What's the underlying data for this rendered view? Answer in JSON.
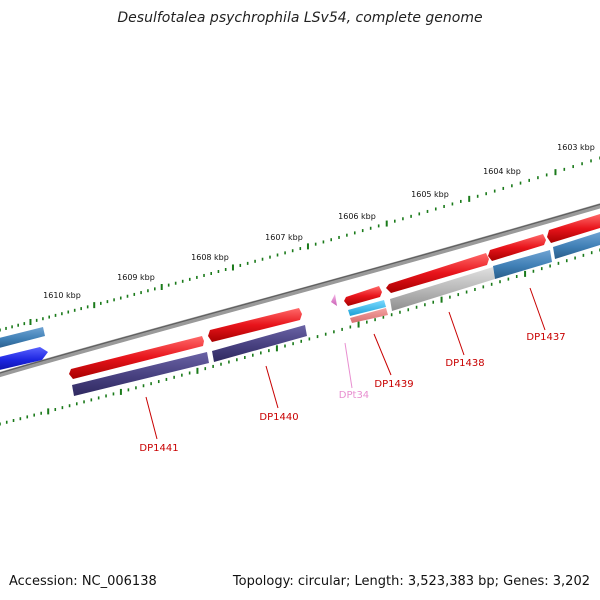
{
  "title": "Desulfotalea psychrophila LSv54, complete genome",
  "footer": {
    "accession": "Accession: NC_006138",
    "summary": "Topology: circular; Length: 3,523,383 bp; Genes: 3,202"
  },
  "colors": {
    "forward_cds": "#e8141b",
    "reverse_cds_blue": "#3f7fb5",
    "reverse_cds_purple": "#47407f",
    "bright_blue": "#1b24e0",
    "trna": "#e37fcf",
    "cyan_feature": "#23b4e5",
    "grey_feature": "#b5b5b5",
    "tick": "#1a7a1a",
    "label_red": "#c80000",
    "label_pink": "#e88fd0",
    "backbone": "#7a7a7a"
  },
  "scale": {
    "ticks": [
      {
        "label": "1603 kbp"
      },
      {
        "label": "1604 kbp"
      },
      {
        "label": "1605 kbp"
      },
      {
        "label": "1606 kbp"
      },
      {
        "label": "1607 kbp"
      },
      {
        "label": "1608 kbp"
      },
      {
        "label": "1609 kbp"
      },
      {
        "label": "1610 kbp"
      }
    ]
  },
  "genes": [
    {
      "label": "DP1437",
      "kind": "cds"
    },
    {
      "label": "DP1438",
      "kind": "cds"
    },
    {
      "label": "DP1439",
      "kind": "cds"
    },
    {
      "label": "DPt34",
      "kind": "trna"
    },
    {
      "label": "DP1440",
      "kind": "cds"
    },
    {
      "label": "DP1441",
      "kind": "cds"
    }
  ]
}
